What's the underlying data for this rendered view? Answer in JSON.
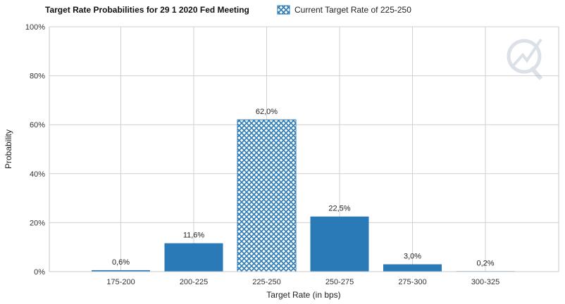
{
  "chart_data": {
    "type": "bar",
    "title": "Target Rate Probabilities for 29 1 2020 Fed Meeting",
    "xlabel": "Target Rate (in bps)",
    "ylabel": "Probability",
    "categories": [
      "175-200",
      "200-225",
      "225-250",
      "250-275",
      "275-300",
      "300-325"
    ],
    "values": [
      0.6,
      11.6,
      62.0,
      22.5,
      3.0,
      0.2
    ],
    "data_labels": [
      "0,6%",
      "11,6%",
      "62,0%",
      "22,5%",
      "3,0%",
      "0,2%"
    ],
    "highlight_category": "225-250",
    "ylim": [
      0,
      100
    ],
    "yticks": [
      0,
      20,
      40,
      60,
      80,
      100
    ],
    "ytick_labels": [
      "0%",
      "20%",
      "40%",
      "60%",
      "80%",
      "100%"
    ],
    "grid": true,
    "legend": {
      "entries": [
        {
          "label": "Current Target Rate of 225-250",
          "pattern": "crosshatch"
        }
      ],
      "position": "top"
    },
    "colors": {
      "bar": "#2a7ab8",
      "hatch": "#2a7ab8",
      "grid": "#d0d0d0"
    }
  }
}
